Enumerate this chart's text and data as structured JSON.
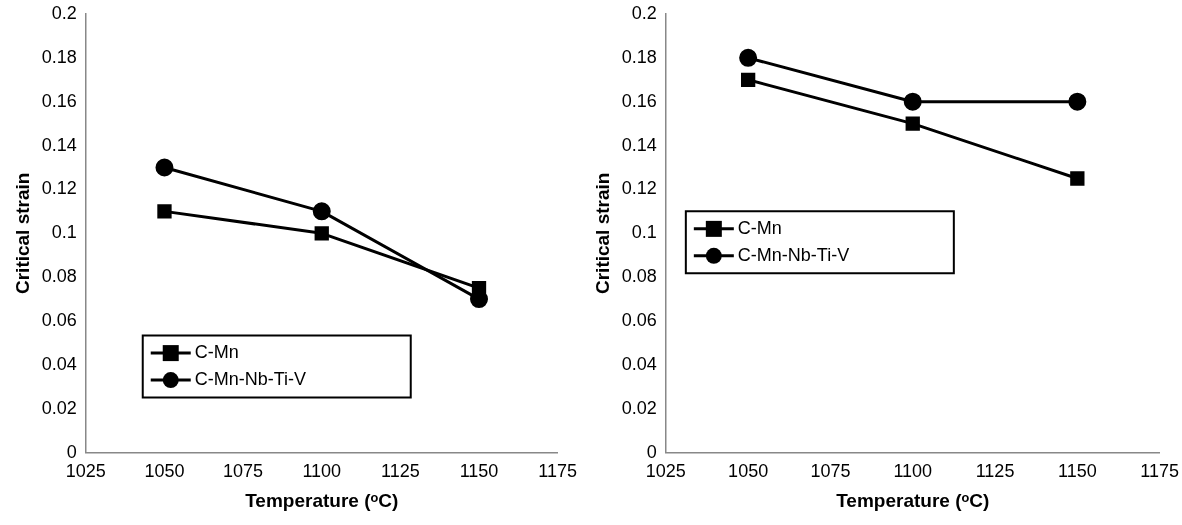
{
  "chart_data": [
    {
      "type": "line",
      "xlabel": "Temperature (ᵒC)",
      "ylabel": "Critical strain",
      "x": [
        1050,
        1100,
        1150
      ],
      "xlim": [
        1025,
        1175
      ],
      "xticks": [
        1025,
        1050,
        1075,
        1100,
        1125,
        1150,
        1175
      ],
      "ylim": [
        0,
        0.2
      ],
      "yticks": [
        0,
        0.02,
        0.04,
        0.06,
        0.08,
        0.1,
        0.12,
        0.14,
        0.16,
        0.18,
        0.2
      ],
      "grid": false,
      "legend": "bottom",
      "line_style": "solid",
      "series": [
        {
          "name": "C-Mn",
          "color": "#000000",
          "marker": "square",
          "values": [
            0.11,
            0.1,
            0.075
          ]
        },
        {
          "name": "C-Mn-Nb-Ti-V",
          "color": "#000000",
          "marker": "circle",
          "values": [
            0.13,
            0.11,
            0.07
          ]
        }
      ]
    },
    {
      "type": "line",
      "xlabel": "Temperature (ᵒC)",
      "ylabel": "Critical strain",
      "x": [
        1050,
        1100,
        1150
      ],
      "xlim": [
        1025,
        1175
      ],
      "xticks": [
        1025,
        1050,
        1075,
        1100,
        1125,
        1150,
        1175
      ],
      "ylim": [
        0,
        0.2
      ],
      "yticks": [
        0,
        0.02,
        0.04,
        0.06,
        0.08,
        0.1,
        0.12,
        0.14,
        0.16,
        0.18,
        0.2
      ],
      "grid": false,
      "legend": "left",
      "line_style": "solid",
      "series": [
        {
          "name": "C-Mn",
          "color": "#000000",
          "marker": "square",
          "values": [
            0.17,
            0.15,
            0.125
          ]
        },
        {
          "name": "C-Mn-Nb-Ti-V",
          "color": "#000000",
          "marker": "circle",
          "values": [
            0.18,
            0.16,
            0.16
          ]
        }
      ]
    }
  ]
}
